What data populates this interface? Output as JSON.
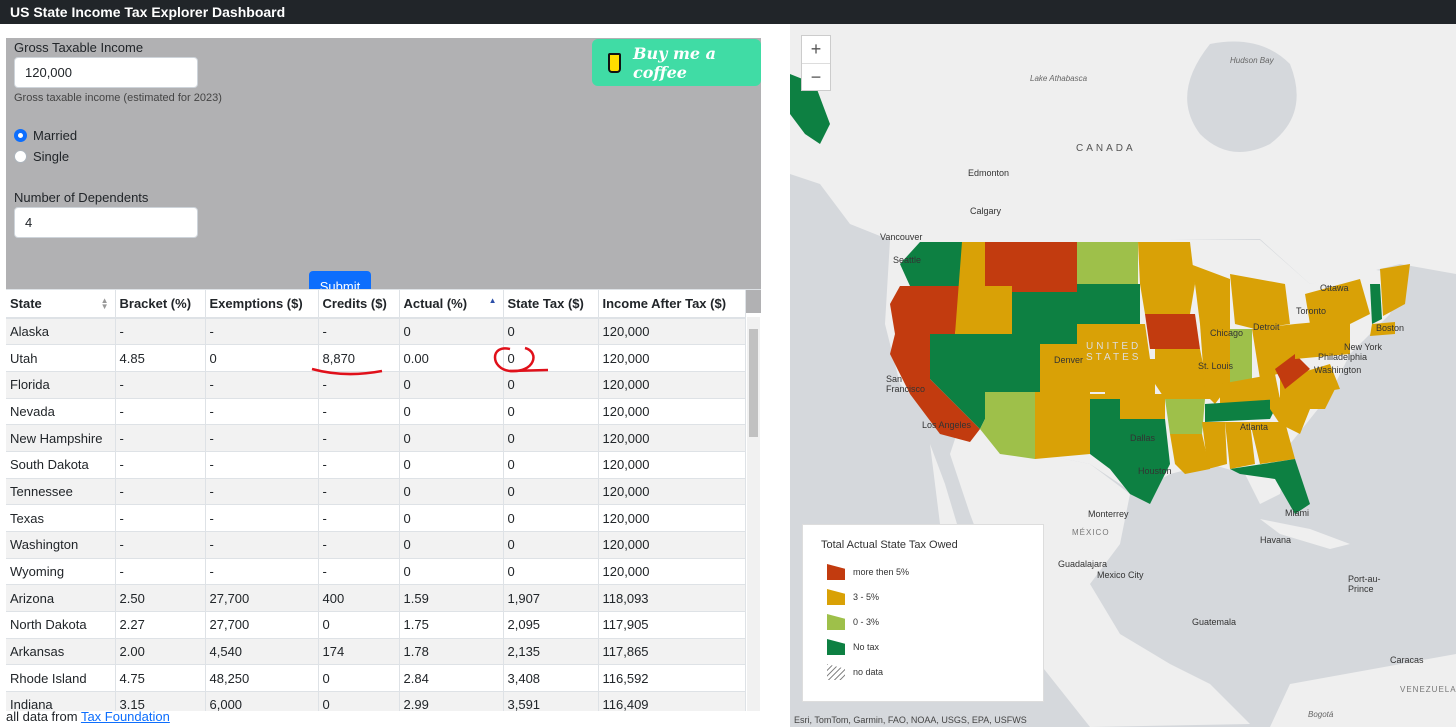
{
  "app": {
    "title": "US State Income Tax Explorer Dashboard"
  },
  "form": {
    "income_label": "Gross Taxable Income",
    "income_value": "120,000",
    "income_help": "Gross taxable income (estimated for 2023)",
    "status_options": [
      {
        "label": "Married",
        "selected": true
      },
      {
        "label": "Single",
        "selected": false
      }
    ],
    "dependents_label": "Number of Dependents",
    "dependents_value": "4",
    "submit_label": "Submit",
    "coffee_label": "Buy me a coffee"
  },
  "table": {
    "columns": [
      "State",
      "Bracket (%)",
      "Exemptions ($)",
      "Credits ($)",
      "Actual (%)",
      "State Tax ($)",
      "Income After Tax ($)"
    ],
    "sorted_column": "Actual (%)",
    "rows": [
      [
        "Alaska",
        "-",
        "-",
        "-",
        "0",
        "0",
        "120,000"
      ],
      [
        "Utah",
        "4.85",
        "0",
        "8,870",
        "0.00",
        "0",
        "120,000"
      ],
      [
        "Florida",
        "-",
        "-",
        "-",
        "0",
        "0",
        "120,000"
      ],
      [
        "Nevada",
        "-",
        "-",
        "-",
        "0",
        "0",
        "120,000"
      ],
      [
        "New Hampshire",
        "-",
        "-",
        "-",
        "0",
        "0",
        "120,000"
      ],
      [
        "South Dakota",
        "-",
        "-",
        "-",
        "0",
        "0",
        "120,000"
      ],
      [
        "Tennessee",
        "-",
        "-",
        "-",
        "0",
        "0",
        "120,000"
      ],
      [
        "Texas",
        "-",
        "-",
        "-",
        "0",
        "0",
        "120,000"
      ],
      [
        "Washington",
        "-",
        "-",
        "-",
        "0",
        "0",
        "120,000"
      ],
      [
        "Wyoming",
        "-",
        "-",
        "-",
        "0",
        "0",
        "120,000"
      ],
      [
        "Arizona",
        "2.50",
        "27,700",
        "400",
        "1.59",
        "1,907",
        "118,093"
      ],
      [
        "North Dakota",
        "2.27",
        "27,700",
        "0",
        "1.75",
        "2,095",
        "117,905"
      ],
      [
        "Arkansas",
        "2.00",
        "4,540",
        "174",
        "1.78",
        "2,135",
        "117,865"
      ],
      [
        "Rhode Island",
        "4.75",
        "48,250",
        "0",
        "2.84",
        "3,408",
        "116,592"
      ],
      [
        "Indiana",
        "3.15",
        "6,000",
        "0",
        "2.99",
        "3,591",
        "116,409"
      ]
    ]
  },
  "footer": {
    "prefix": "all data from",
    "link": "Tax Foundation"
  },
  "map": {
    "legend_title": "Total Actual State Tax Owed",
    "legend": [
      {
        "label": "more then 5%",
        "color": "#c23b0f"
      },
      {
        "label": "3 - 5%",
        "color": "#d9a106"
      },
      {
        "label": "0 - 3%",
        "color": "#9ec04a"
      },
      {
        "label": "No tax",
        "color": "#0d8042"
      },
      {
        "label": "no data",
        "color": "hatch"
      }
    ],
    "attribution": "Esri, TomTom, Garmin, FAO, NOAA, USGS, EPA, USFWS",
    "labels": {
      "canada": "CANADA",
      "united_states": "UNITED STATES",
      "mexico": "MÉXICO",
      "edmonton": "Edmonton",
      "calgary": "Calgary",
      "vancouver": "Vancouver",
      "seattle": "Seattle",
      "san_francisco": "San Francisco",
      "los_angeles": "Los Angeles",
      "denver": "Denver",
      "dallas": "Dallas",
      "houston": "Houston",
      "chicago": "Chicago",
      "detroit": "Detroit",
      "toronto": "Toronto",
      "ottawa": "Ottawa",
      "boston": "Boston",
      "new_york": "New York",
      "philadelphia": "Philadelphia",
      "washington": "Washington",
      "st_louis": "St. Louis",
      "atlanta": "Atlanta",
      "miami": "Miami",
      "monterrey": "Monterrey",
      "guadalajara": "Guadalajara",
      "mexico_city": "Mexico City",
      "havana": "Havana",
      "port_au_prince": "Port-au-Prince",
      "guatemala": "Guatemala",
      "caracas": "Caracas",
      "venezuela": "VENEZUELA",
      "hudson_bay": "Hudson Bay",
      "lake_athabasca": "Lake Athabasca",
      "bogota": "Bogotá"
    }
  }
}
